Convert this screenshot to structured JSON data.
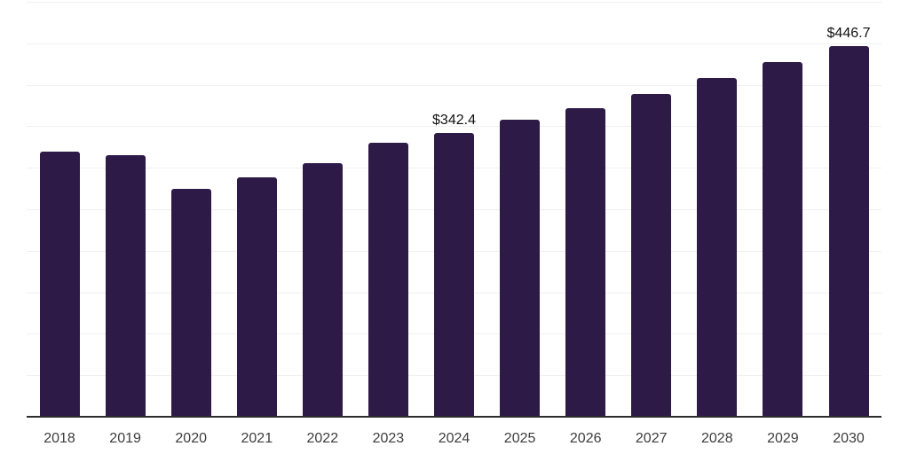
{
  "chart_data": {
    "type": "bar",
    "title": "",
    "xlabel": "",
    "ylabel": "",
    "categories": [
      "2018",
      "2019",
      "2020",
      "2021",
      "2022",
      "2023",
      "2024",
      "2025",
      "2026",
      "2027",
      "2028",
      "2029",
      "2030"
    ],
    "values": [
      319,
      315,
      275,
      289,
      306,
      330,
      342.4,
      358,
      372,
      389,
      408,
      427,
      446.7
    ],
    "point_labels": [
      "",
      "",
      "",
      "",
      "",
      "",
      "$342.4",
      "",
      "",
      "",
      "",
      "",
      "$446.7"
    ],
    "ylim": [
      0,
      500
    ],
    "gridline_step": 50,
    "grid": "horizontal",
    "legend": "none",
    "colors": {
      "bar_fill": "#2e1a47",
      "gridline": "#f0f0f0",
      "axis_line": "#2d2d2d",
      "tick_label": "#3d3d3d",
      "value_label": "#111111",
      "background": "#ffffff"
    }
  }
}
